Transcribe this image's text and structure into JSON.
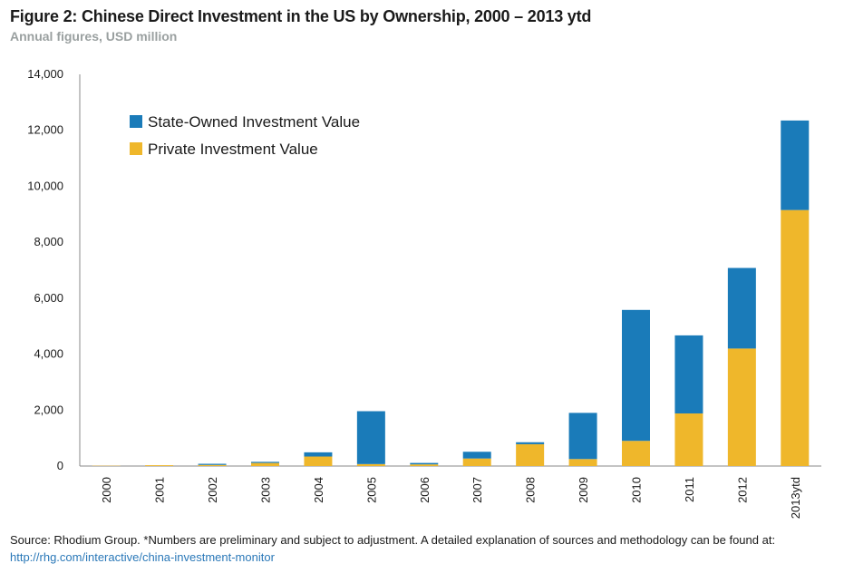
{
  "header": {
    "title": "Figure 2: Chinese Direct Investment in the US by Ownership, 2000 – 2013 ytd",
    "subtitle": "Annual figures, USD million"
  },
  "footer": {
    "source_text": "Source: Rhodium Group. *Numbers are preliminary and subject to adjustment. A detailed explanation of sources and methodology can be found at: ",
    "source_link": "http://rhg.com/interactive/china-investment-monitor"
  },
  "colors": {
    "state": "#1a7bb9",
    "private": "#efb72b",
    "axis": "#8a8a8a"
  },
  "chart_data": {
    "type": "bar",
    "stacked": true,
    "title": "Figure 2: Chinese Direct Investment in the US by Ownership, 2000 – 2013 ytd",
    "subtitle": "Annual figures, USD million",
    "xlabel": "",
    "ylabel": "",
    "ylim": [
      0,
      14000
    ],
    "yticks": [
      0,
      2000,
      4000,
      6000,
      8000,
      10000,
      12000,
      14000
    ],
    "ytick_labels": [
      "0",
      "2,000",
      "4,000",
      "6,000",
      "8,000",
      "10,000",
      "12,000",
      "14,000"
    ],
    "grid": false,
    "legend_position": "top-left",
    "categories": [
      "2000",
      "2001",
      "2002",
      "2003",
      "2004",
      "2005",
      "2006",
      "2007",
      "2008",
      "2009",
      "2010",
      "2011",
      "2012",
      "2013ytd"
    ],
    "series": [
      {
        "name": "Private Investment Value",
        "values": [
          10,
          30,
          40,
          110,
          340,
          70,
          60,
          270,
          780,
          250,
          900,
          1880,
          4200,
          9150
        ]
      },
      {
        "name": "State-Owned Investment Value",
        "values": [
          0,
          0,
          40,
          40,
          150,
          1890,
          50,
          240,
          70,
          1650,
          4680,
          2790,
          2880,
          3200
        ]
      }
    ]
  }
}
